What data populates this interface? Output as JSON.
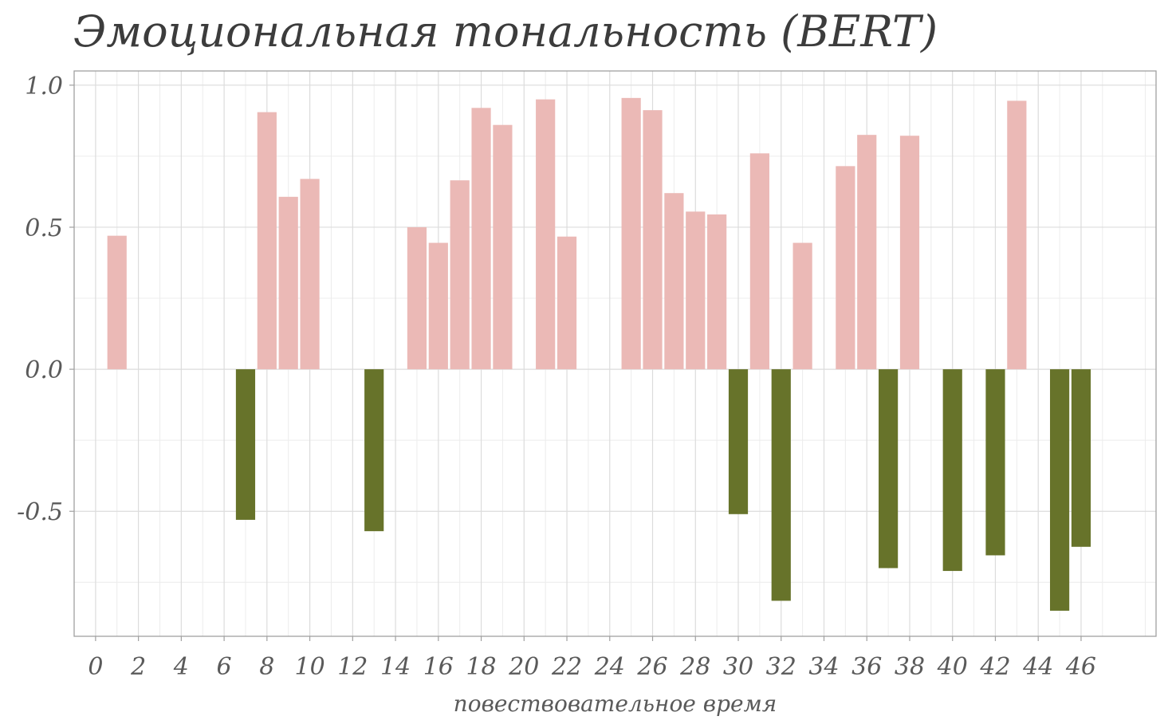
{
  "chart_data": {
    "type": "bar",
    "title": "Эмоциональная тональность (BERT)",
    "xlabel": "повествовательное время",
    "ylabel": "",
    "xlim": [
      -1,
      49.5
    ],
    "ylim": [
      -0.94,
      1.05
    ],
    "x_ticks": [
      0,
      2,
      4,
      6,
      8,
      10,
      12,
      14,
      16,
      18,
      20,
      22,
      24,
      26,
      28,
      30,
      32,
      34,
      36,
      38,
      40,
      42,
      44,
      46
    ],
    "y_ticks": [
      -0.5,
      0.0,
      0.5,
      1.0
    ],
    "y_tick_labels": [
      "-0.5",
      "0.0",
      "0.5",
      "1.0"
    ],
    "grid": true,
    "colors": {
      "positive": "#ebb9b6",
      "negative": "#67732a"
    },
    "x": [
      1,
      7,
      8,
      9,
      10,
      13,
      15,
      16,
      17,
      18,
      19,
      21,
      22,
      25,
      26,
      27,
      28,
      29,
      30,
      31,
      32,
      33,
      35,
      36,
      37,
      38,
      40,
      42,
      43,
      45,
      46
    ],
    "values": [
      0.47,
      -0.53,
      0.905,
      0.607,
      0.67,
      -0.57,
      0.5,
      0.445,
      0.665,
      0.92,
      0.86,
      0.95,
      0.467,
      0.955,
      0.912,
      0.62,
      0.555,
      0.545,
      -0.51,
      0.76,
      -0.815,
      0.445,
      0.715,
      0.825,
      -0.7,
      0.822,
      -0.71,
      -0.655,
      0.945,
      -0.85,
      -0.625
    ]
  }
}
